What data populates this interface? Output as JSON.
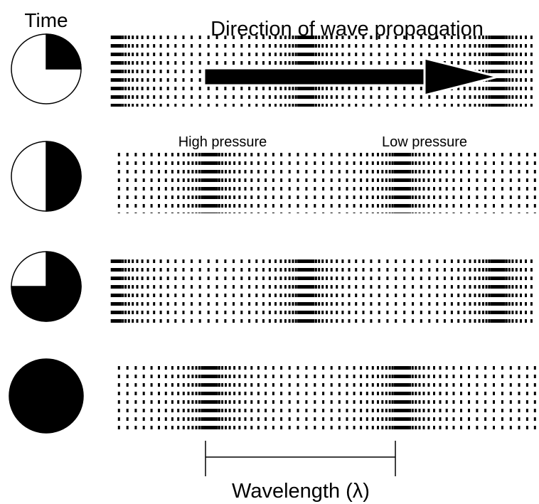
{
  "header": {
    "time_label": "Time",
    "direction_label": "Direction of wave propagation"
  },
  "labels": {
    "high_pressure": "High pressure",
    "low_pressure": "Low pressure",
    "wavelength": "Wavelength (λ)"
  }
}
